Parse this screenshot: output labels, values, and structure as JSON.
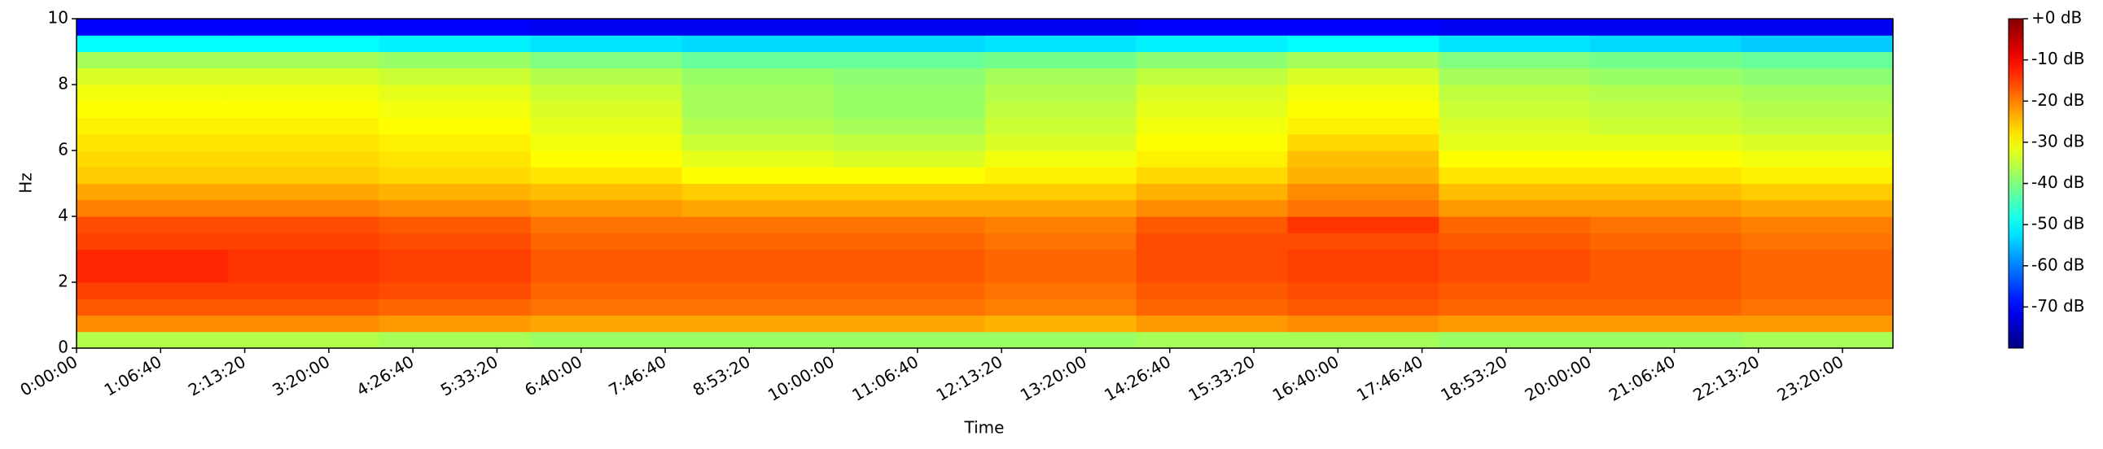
{
  "chart_data": {
    "type": "spectrogram",
    "colormap": "jet",
    "x_label": "Time",
    "y_label": "Hz",
    "xlim": [
      0,
      86400
    ],
    "ylim": [
      0,
      10
    ],
    "clim": [
      -80,
      0
    ],
    "xticks": [
      {
        "value": 0,
        "label": "0:00:00"
      },
      {
        "value": 4000,
        "label": "1:06:40"
      },
      {
        "value": 8000,
        "label": "2:13:20"
      },
      {
        "value": 12000,
        "label": "3:20:00"
      },
      {
        "value": 16000,
        "label": "4:26:40"
      },
      {
        "value": 20000,
        "label": "5:33:20"
      },
      {
        "value": 24000,
        "label": "6:40:00"
      },
      {
        "value": 28000,
        "label": "7:46:40"
      },
      {
        "value": 32000,
        "label": "8:53:20"
      },
      {
        "value": 36000,
        "label": "10:00:00"
      },
      {
        "value": 40000,
        "label": "11:06:40"
      },
      {
        "value": 44000,
        "label": "12:13:20"
      },
      {
        "value": 48000,
        "label": "13:20:00"
      },
      {
        "value": 52000,
        "label": "14:26:40"
      },
      {
        "value": 56000,
        "label": "15:33:20"
      },
      {
        "value": 60000,
        "label": "16:40:00"
      },
      {
        "value": 64000,
        "label": "17:46:40"
      },
      {
        "value": 68000,
        "label": "18:53:20"
      },
      {
        "value": 72000,
        "label": "20:00:00"
      },
      {
        "value": 76000,
        "label": "21:06:40"
      },
      {
        "value": 80000,
        "label": "22:13:20"
      },
      {
        "value": 84000,
        "label": "23:20:00"
      }
    ],
    "yticks": [
      0,
      2,
      4,
      6,
      8,
      10
    ],
    "cticks": [
      {
        "value": 0,
        "label": "+0 dB"
      },
      {
        "value": -10,
        "label": "-10 dB"
      },
      {
        "value": -20,
        "label": "-20 dB"
      },
      {
        "value": -30,
        "label": "-30 dB"
      },
      {
        "value": -40,
        "label": "-40 dB"
      },
      {
        "value": -50,
        "label": "-50 dB"
      },
      {
        "value": -60,
        "label": "-60 dB"
      },
      {
        "value": -70,
        "label": "-70 dB"
      }
    ],
    "xbins": [
      0,
      7200,
      14400,
      21600,
      28800,
      36000,
      43200,
      50400,
      57600,
      64800,
      72000,
      79200,
      86400
    ],
    "ybins": [
      0,
      0.5,
      1,
      1.5,
      2,
      2.5,
      3,
      3.5,
      4,
      4.5,
      5,
      5.5,
      6,
      6.5,
      7,
      7.5,
      8,
      8.5,
      9,
      9.5,
      10
    ],
    "z": [
      [
        -36,
        -36,
        -37,
        -38,
        -38,
        -38,
        -38,
        -37,
        -37,
        -38,
        -38,
        -37
      ],
      [
        -21,
        -21,
        -22,
        -23,
        -23,
        -23,
        -24,
        -22,
        -21,
        -22,
        -22,
        -22
      ],
      [
        -17,
        -17,
        -18,
        -19,
        -19,
        -19,
        -20,
        -18,
        -17,
        -18,
        -18,
        -19
      ],
      [
        -15,
        -15,
        -16,
        -18,
        -18,
        -18,
        -19,
        -17,
        -16,
        -17,
        -17,
        -18
      ],
      [
        -13,
        -14,
        -15,
        -17,
        -17,
        -17,
        -18,
        -16,
        -15,
        -16,
        -17,
        -18
      ],
      [
        -13,
        -14,
        -15,
        -17,
        -17,
        -17,
        -18,
        -16,
        -15,
        -16,
        -17,
        -18
      ],
      [
        -15,
        -15,
        -16,
        -18,
        -18,
        -18,
        -19,
        -16,
        -16,
        -17,
        -18,
        -19
      ],
      [
        -16,
        -16,
        -17,
        -19,
        -19,
        -19,
        -20,
        -17,
        -14,
        -18,
        -19,
        -20
      ],
      [
        -20,
        -20,
        -21,
        -22,
        -23,
        -23,
        -23,
        -21,
        -19,
        -22,
        -22,
        -23
      ],
      [
        -23,
        -23,
        -24,
        -25,
        -26,
        -26,
        -26,
        -24,
        -21,
        -25,
        -25,
        -26
      ],
      [
        -26,
        -26,
        -27,
        -28,
        -30,
        -30,
        -29,
        -27,
        -24,
        -28,
        -28,
        -29
      ],
      [
        -27,
        -27,
        -28,
        -30,
        -32,
        -33,
        -31,
        -29,
        -25,
        -30,
        -30,
        -31
      ],
      [
        -28,
        -28,
        -29,
        -31,
        -34,
        -35,
        -33,
        -30,
        -27,
        -32,
        -32,
        -33
      ],
      [
        -29,
        -29,
        -30,
        -32,
        -36,
        -37,
        -34,
        -31,
        -29,
        -33,
        -34,
        -35
      ],
      [
        -30,
        -30,
        -31,
        -33,
        -37,
        -38,
        -35,
        -32,
        -30,
        -34,
        -35,
        -36
      ],
      [
        -31,
        -31,
        -32,
        -34,
        -37,
        -38,
        -36,
        -33,
        -31,
        -35,
        -36,
        -37
      ],
      [
        -33,
        -33,
        -34,
        -36,
        -38,
        -39,
        -37,
        -35,
        -33,
        -37,
        -38,
        -39
      ],
      [
        -37,
        -37,
        -38,
        -40,
        -42,
        -42,
        -41,
        -39,
        -37,
        -40,
        -41,
        -42
      ],
      [
        -50,
        -50,
        -51,
        -52,
        -53,
        -53,
        -52,
        -51,
        -50,
        -52,
        -53,
        -54
      ],
      [
        -70,
        -70,
        -70,
        -71,
        -71,
        -71,
        -71,
        -70,
        -70,
        -71,
        -71,
        -71
      ]
    ]
  }
}
